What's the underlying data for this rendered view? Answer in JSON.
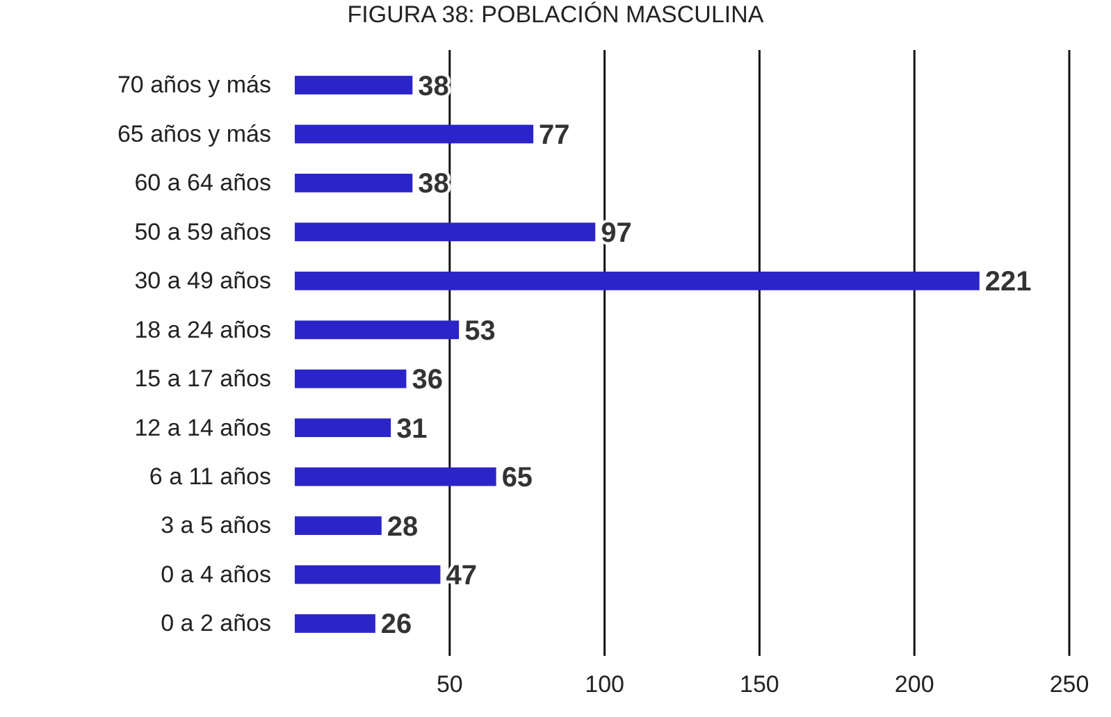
{
  "chart_data": {
    "type": "bar",
    "orientation": "horizontal",
    "title": "FIGURA 38: POBLACIÓN MASCULINA",
    "categories": [
      "70 años y más",
      "65 años y más",
      "60 a 64 años",
      "50 a 59 años",
      "30 a 49 años",
      "18 a 24 años",
      "15 a 17 años",
      "12 a 14 años",
      "6 a 11 años",
      "3 a 5 años",
      "0 a 4 años",
      "0 a 2 años"
    ],
    "values": [
      38,
      77,
      38,
      97,
      221,
      53,
      36,
      31,
      65,
      28,
      47,
      26
    ],
    "color": "#2b24c9",
    "xlim": [
      0,
      250
    ],
    "xticks": [
      50,
      100,
      150,
      200,
      250
    ],
    "grid": "x",
    "data_labels": true
  }
}
